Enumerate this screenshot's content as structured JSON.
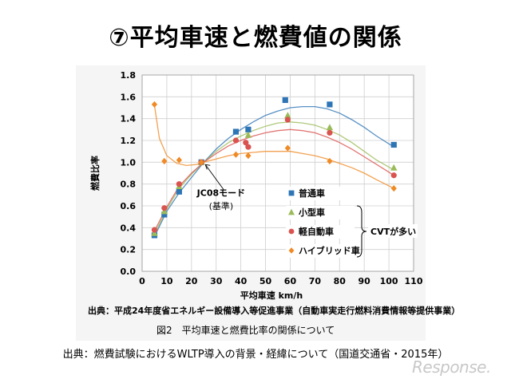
{
  "slide": {
    "title": "⑦平均車速と燃費値の関係",
    "source_note": "出典：平成24年度省エネルギー設備導入等促進事業（自動車実走行燃料消費情報等提供事業）",
    "figure_caption": "図2　平均車速と燃費比率の関係について",
    "page_source": "出典：燃費試験におけるWLTP導入の背景・経緯について（国道交通省・2015年）",
    "watermark": "Response."
  },
  "chart_data": {
    "type": "scatter",
    "title": "",
    "xlabel": "平均車速 km/h",
    "ylabel": "燃費比率",
    "xlim": [
      0,
      110
    ],
    "ylim": [
      0,
      1.8
    ],
    "x_ticks": [
      0,
      10,
      20,
      30,
      40,
      50,
      60,
      70,
      80,
      90,
      100,
      110
    ],
    "y_ticks": [
      0,
      0.2,
      0.4,
      0.6,
      0.8,
      1.0,
      1.2,
      1.4,
      1.6,
      1.8
    ],
    "grid": true,
    "legend_position": "center-right",
    "annotations": {
      "jc08_label": "JC08モード",
      "jc08_sub": "(基準)",
      "jc08_point": [
        25,
        1.0
      ],
      "cvt_label": "CVTが多い"
    },
    "series": [
      {
        "name": "普通車",
        "marker": "square",
        "color": "#2E75B6",
        "points": [
          [
            5,
            0.33
          ],
          [
            9,
            0.52
          ],
          [
            15,
            0.73
          ],
          [
            24,
            1.0
          ],
          [
            38,
            1.28
          ],
          [
            43,
            1.3
          ],
          [
            58,
            1.57
          ],
          [
            76,
            1.53
          ],
          [
            102,
            1.16
          ]
        ],
        "curve": [
          [
            5,
            0.32
          ],
          [
            10,
            0.55
          ],
          [
            15,
            0.72
          ],
          [
            20,
            0.86
          ],
          [
            25,
            1.0
          ],
          [
            30,
            1.12
          ],
          [
            35,
            1.22
          ],
          [
            40,
            1.3
          ],
          [
            45,
            1.37
          ],
          [
            50,
            1.43
          ],
          [
            55,
            1.47
          ],
          [
            60,
            1.5
          ],
          [
            65,
            1.51
          ],
          [
            70,
            1.51
          ],
          [
            75,
            1.49
          ],
          [
            80,
            1.45
          ],
          [
            85,
            1.39
          ],
          [
            90,
            1.32
          ],
          [
            95,
            1.24
          ],
          [
            102,
            1.14
          ]
        ]
      },
      {
        "name": "小型車",
        "marker": "triangle",
        "color": "#9BBB59",
        "points": [
          [
            5,
            0.35
          ],
          [
            9,
            0.55
          ],
          [
            15,
            0.78
          ],
          [
            24,
            1.0
          ],
          [
            43,
            1.25
          ],
          [
            59,
            1.43
          ],
          [
            76,
            1.32
          ],
          [
            102,
            0.95
          ]
        ],
        "curve": [
          [
            5,
            0.34
          ],
          [
            10,
            0.57
          ],
          [
            15,
            0.76
          ],
          [
            20,
            0.89
          ],
          [
            25,
            1.0
          ],
          [
            30,
            1.1
          ],
          [
            35,
            1.18
          ],
          [
            40,
            1.24
          ],
          [
            45,
            1.29
          ],
          [
            50,
            1.33
          ],
          [
            55,
            1.36
          ],
          [
            60,
            1.37
          ],
          [
            65,
            1.36
          ],
          [
            70,
            1.34
          ],
          [
            75,
            1.3
          ],
          [
            80,
            1.25
          ],
          [
            85,
            1.18
          ],
          [
            90,
            1.1
          ],
          [
            95,
            1.02
          ],
          [
            102,
            0.93
          ]
        ]
      },
      {
        "name": "軽自動車",
        "marker": "circle",
        "color": "#D9534F",
        "points": [
          [
            5,
            0.38
          ],
          [
            9,
            0.58
          ],
          [
            15,
            0.8
          ],
          [
            24,
            1.0
          ],
          [
            38,
            1.2
          ],
          [
            42,
            1.18
          ],
          [
            43,
            1.14
          ],
          [
            59,
            1.39
          ],
          [
            76,
            1.27
          ],
          [
            102,
            0.88
          ]
        ],
        "curve": [
          [
            5,
            0.37
          ],
          [
            10,
            0.59
          ],
          [
            15,
            0.78
          ],
          [
            20,
            0.9
          ],
          [
            25,
            1.0
          ],
          [
            30,
            1.08
          ],
          [
            35,
            1.15
          ],
          [
            40,
            1.2
          ],
          [
            45,
            1.24
          ],
          [
            50,
            1.27
          ],
          [
            55,
            1.29
          ],
          [
            60,
            1.3
          ],
          [
            65,
            1.29
          ],
          [
            70,
            1.27
          ],
          [
            75,
            1.23
          ],
          [
            80,
            1.18
          ],
          [
            85,
            1.12
          ],
          [
            90,
            1.05
          ],
          [
            95,
            0.98
          ],
          [
            102,
            0.88
          ]
        ]
      },
      {
        "name": "ハイブリッド車",
        "marker": "diamond",
        "color": "#F08A24",
        "points": [
          [
            5,
            1.53
          ],
          [
            9,
            1.01
          ],
          [
            15,
            1.02
          ],
          [
            24,
            1.0
          ],
          [
            38,
            1.07
          ],
          [
            43,
            1.06
          ],
          [
            59,
            1.13
          ],
          [
            76,
            1.01
          ],
          [
            102,
            0.76
          ]
        ],
        "curve": [
          [
            5,
            1.52
          ],
          [
            7,
            1.22
          ],
          [
            10,
            1.06
          ],
          [
            14,
            0.99
          ],
          [
            18,
            0.97
          ],
          [
            22,
            0.98
          ],
          [
            25,
            1.0
          ],
          [
            30,
            1.03
          ],
          [
            35,
            1.06
          ],
          [
            40,
            1.08
          ],
          [
            45,
            1.09
          ],
          [
            50,
            1.1
          ],
          [
            55,
            1.1
          ],
          [
            60,
            1.1
          ],
          [
            65,
            1.08
          ],
          [
            70,
            1.06
          ],
          [
            75,
            1.03
          ],
          [
            80,
            0.99
          ],
          [
            85,
            0.95
          ],
          [
            90,
            0.9
          ],
          [
            95,
            0.84
          ],
          [
            102,
            0.76
          ]
        ]
      }
    ]
  }
}
